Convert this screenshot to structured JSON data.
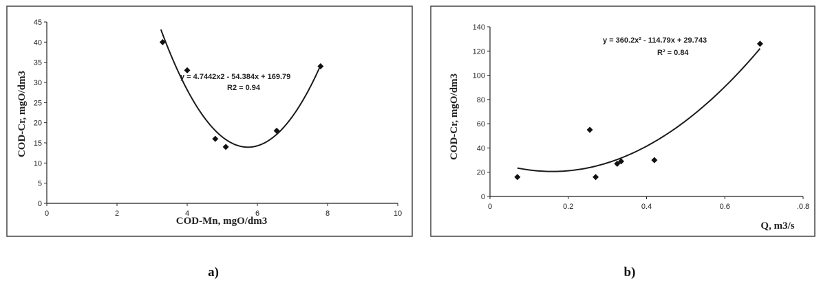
{
  "chart_data": [
    {
      "type": "scatter",
      "panel_label": "a)",
      "xlabel": "COD-Mn, mgO/dm3",
      "ylabel": "COD-Cr, mgO/dm3",
      "xlim": [
        0,
        10
      ],
      "ylim": [
        0,
        45
      ],
      "xticks": [
        0,
        2,
        4,
        6,
        8,
        10
      ],
      "yticks": [
        0,
        5,
        10,
        15,
        20,
        25,
        30,
        35,
        40,
        45
      ],
      "xtick_labels": [
        "0",
        "2",
        "4",
        "6",
        "8",
        "10"
      ],
      "ytick_labels": [
        "0",
        "5",
        "10",
        "15",
        "20",
        "25",
        "30",
        "35",
        "40",
        "45"
      ],
      "points": [
        {
          "x": 3.3,
          "y": 40
        },
        {
          "x": 4.0,
          "y": 33
        },
        {
          "x": 4.8,
          "y": 16
        },
        {
          "x": 5.1,
          "y": 14
        },
        {
          "x": 6.55,
          "y": 18
        },
        {
          "x": 7.8,
          "y": 34
        }
      ],
      "trendline": {
        "type": "polynomial",
        "a": 4.7442,
        "b": -54.384,
        "c": 169.79,
        "x_range": [
          3.25,
          7.8
        ]
      },
      "equation": "y = 4.7442x2 - 54.384x + 169.79",
      "r2": "R2 = 0.94",
      "grid": false,
      "legend": "none"
    },
    {
      "type": "scatter",
      "panel_label": "b)",
      "xlabel": "Q, m3/s",
      "ylabel": "COD-Cr, mgO/dm3",
      "xlim": [
        0,
        0.8
      ],
      "ylim": [
        0,
        140
      ],
      "xticks": [
        0,
        0.2,
        0.4,
        0.6,
        0.8
      ],
      "yticks": [
        0,
        20,
        40,
        60,
        80,
        100,
        120,
        140
      ],
      "xtick_labels": [
        "0",
        "0.2",
        "0.4",
        "0.6",
        ".0.8"
      ],
      "ytick_labels": [
        "0",
        "20",
        "40",
        "60",
        "80",
        "100",
        "120",
        "140"
      ],
      "points": [
        {
          "x": 0.07,
          "y": 16
        },
        {
          "x": 0.255,
          "y": 55
        },
        {
          "x": 0.27,
          "y": 16
        },
        {
          "x": 0.325,
          "y": 27
        },
        {
          "x": 0.335,
          "y": 29
        },
        {
          "x": 0.42,
          "y": 30
        },
        {
          "x": 0.69,
          "y": 126
        }
      ],
      "trendline": {
        "type": "polynomial",
        "a": 360.2,
        "b": -114.79,
        "c": 29.743,
        "x_range": [
          0.07,
          0.69
        ]
      },
      "equation": "y = 360.2x² - 114.79x + 29.743",
      "r2": "R² = 0.84",
      "grid": false,
      "legend": "none"
    }
  ]
}
